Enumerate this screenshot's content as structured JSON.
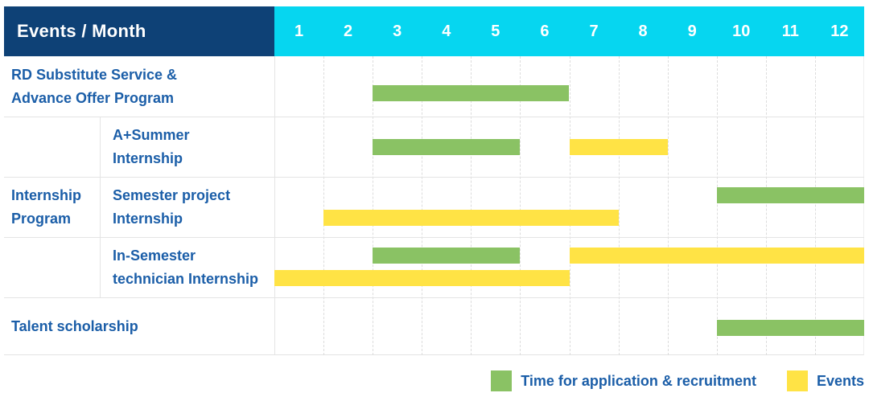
{
  "header": {
    "label_column": "Events / Month",
    "months": [
      "1",
      "2",
      "3",
      "4",
      "5",
      "6",
      "7",
      "8",
      "9",
      "10",
      "11",
      "12"
    ]
  },
  "colors": {
    "header_bg": "#0e4176",
    "months_bg": "#06d6f0",
    "header_text": "#ffffff",
    "label_text": "#1b5ea8",
    "recruitment": "#8ac264",
    "event": "#ffe345",
    "grid": "#e4e4e4"
  },
  "legend": [
    {
      "key": "recruitment",
      "label": "Time for application & recruitment"
    },
    {
      "key": "event",
      "label": "Events"
    }
  ],
  "chart_data": {
    "type": "gantt",
    "title": "Events / Month",
    "x_axis": {
      "label": "Month",
      "ticks": [
        1,
        2,
        3,
        4,
        5,
        6,
        7,
        8,
        9,
        10,
        11,
        12
      ],
      "range": [
        1,
        12
      ]
    },
    "series_legend": {
      "recruitment": "Time for application & recruitment",
      "event": "Events"
    },
    "groups": [
      {
        "label_lines": [
          "Internship",
          "Program"
        ],
        "from_row": 1,
        "to_row": 3
      }
    ],
    "rows": [
      {
        "id": "rd-substitute-service",
        "label": "RD Substitute Service & Advance Offer Program",
        "label_lines": [
          "RD Substitute Service &",
          "Advance Offer Program"
        ],
        "indent": false,
        "lines": 1,
        "bars": [
          {
            "series": "recruitment",
            "start_month": 3,
            "end_month": 6,
            "line": 0
          }
        ]
      },
      {
        "id": "a-plus-summer-internship",
        "label": "A+Summer Internship",
        "label_lines": [
          "A+Summer",
          "Internship"
        ],
        "indent": true,
        "lines": 1,
        "bars": [
          {
            "series": "recruitment",
            "start_month": 3,
            "end_month": 5,
            "line": 0
          },
          {
            "series": "event",
            "start_month": 7,
            "end_month": 8,
            "line": 0
          }
        ]
      },
      {
        "id": "semester-project-internship",
        "label": "Semester project Internship",
        "label_lines": [
          "Semester project",
          "Internship"
        ],
        "indent": true,
        "lines": 2,
        "bars": [
          {
            "series": "recruitment",
            "start_month": 10,
            "end_month": 12,
            "line": 0
          },
          {
            "series": "event",
            "start_month": 2,
            "end_month": 7,
            "line": 1
          }
        ]
      },
      {
        "id": "in-semester-technician-internship",
        "label": "In-Semester technician Internship",
        "label_lines": [
          "In-Semester",
          "technician Internship"
        ],
        "indent": true,
        "lines": 2,
        "bars": [
          {
            "series": "recruitment",
            "start_month": 3,
            "end_month": 5,
            "line": 0
          },
          {
            "series": "event",
            "start_month": 7,
            "end_month": 12,
            "line": 0
          },
          {
            "series": "event",
            "start_month": 1,
            "end_month": 6,
            "line": 1
          }
        ]
      },
      {
        "id": "talent-scholarship",
        "label": "Talent scholarship",
        "label_lines": [
          "Talent scholarship"
        ],
        "indent": false,
        "lines": 1,
        "bars": [
          {
            "series": "recruitment",
            "start_month": 10,
            "end_month": 12,
            "line": 0
          }
        ]
      }
    ]
  }
}
